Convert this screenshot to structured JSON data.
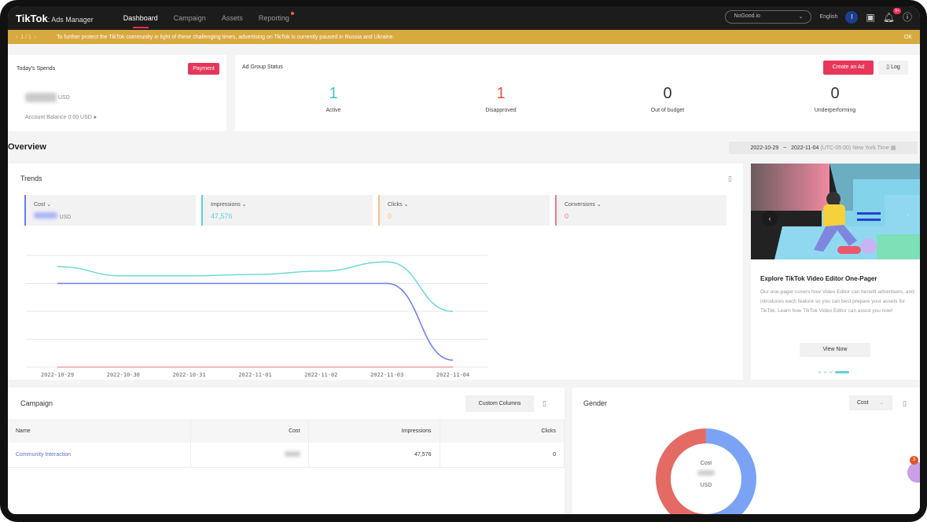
{
  "header": {
    "logo": "TikTok",
    "logo_sub": ": Ads Manager",
    "nav": [
      "Dashboard",
      "Campaign",
      "Assets",
      "Reporting"
    ],
    "account": "NoGood.io",
    "language": "English",
    "avatar_initial": "I",
    "notification_badge": "9+"
  },
  "banner": {
    "pager": "1 / 1",
    "message": "To further protect the TikTok community in light of these challenging times, advertising on TikTok is currently paused in Russia and Ukraine.",
    "ok": "OK"
  },
  "spends": {
    "title": "Today's Spends",
    "payment": "Payment",
    "currency": "USD",
    "balance": "Account Balance 0.00 USD"
  },
  "ad_group": {
    "title": "Ad Group Status",
    "create": "Create an Ad",
    "log": "Log",
    "stats": [
      {
        "value": "1",
        "label": "Active",
        "color": "#3cc7c7"
      },
      {
        "value": "1",
        "label": "Disapproved",
        "color": "#f0504a"
      },
      {
        "value": "0",
        "label": "Out of budget",
        "color": "#333333"
      },
      {
        "value": "0",
        "label": "Underperforming",
        "color": "#333333"
      }
    ]
  },
  "overview": {
    "title": "Overview",
    "start": "2022-10-29",
    "sep": "~",
    "end": "2022-11-04",
    "tz": "(UTC-05:00) New York Time"
  },
  "trends": {
    "title": "Trends",
    "metrics": [
      {
        "label": "Cost",
        "value": "",
        "unit": "USD",
        "color": "#6b7cf0"
      },
      {
        "label": "Impressions",
        "value": "47,576",
        "unit": "",
        "color": "#5fd3d6"
      },
      {
        "label": "Clicks",
        "value": "0",
        "unit": "",
        "color": "#f5c08a"
      },
      {
        "label": "Conversions",
        "value": "0",
        "unit": "",
        "color": "#f07a8c"
      }
    ]
  },
  "chart_data": {
    "type": "line",
    "x": [
      "2022-10-29",
      "2022-10-30",
      "2022-10-31",
      "2022-11-01",
      "2022-11-02",
      "2022-11-03",
      "2022-11-04"
    ],
    "ylim": [
      0,
      4
    ],
    "grid": true,
    "series": [
      {
        "name": "Impressions",
        "color": "#6fd9d6",
        "values": [
          3.6,
          3.27,
          3.27,
          3.32,
          3.44,
          3.77,
          2.0
        ]
      },
      {
        "name": "Cost",
        "color": "#6b7cf0",
        "values": [
          3,
          3,
          3,
          3,
          3,
          3,
          0.25
        ]
      },
      {
        "name": "Conversions",
        "color": "#f0a0aa",
        "values": [
          0,
          0,
          0,
          0,
          0,
          0,
          0
        ]
      }
    ]
  },
  "promo": {
    "title": "Explore TikTok Video Editor One-Pager",
    "body": "Our one-pager covers how Video Editor can benefit advertisers, and introduces each feature so you can best prepare your assets for TikTok. Learn how TikTok Video Editor can assist you now!",
    "cta": "View Now",
    "slides": 4,
    "active_slide": 4
  },
  "campaign": {
    "title": "Campaign",
    "custom": "Custom Columns",
    "columns": [
      "Name",
      "Cost",
      "Impressions",
      "Clicks"
    ],
    "rows": [
      {
        "name": "Community Interaction",
        "impressions": "47,576",
        "clicks": "0"
      }
    ]
  },
  "gender": {
    "title": "Gender",
    "select": "Cost",
    "center_label": "Cost",
    "unit": "USD",
    "female_share": 0.5,
    "colors": [
      "#7aa3f5",
      "#e46a64"
    ]
  },
  "chat_badge": "3"
}
